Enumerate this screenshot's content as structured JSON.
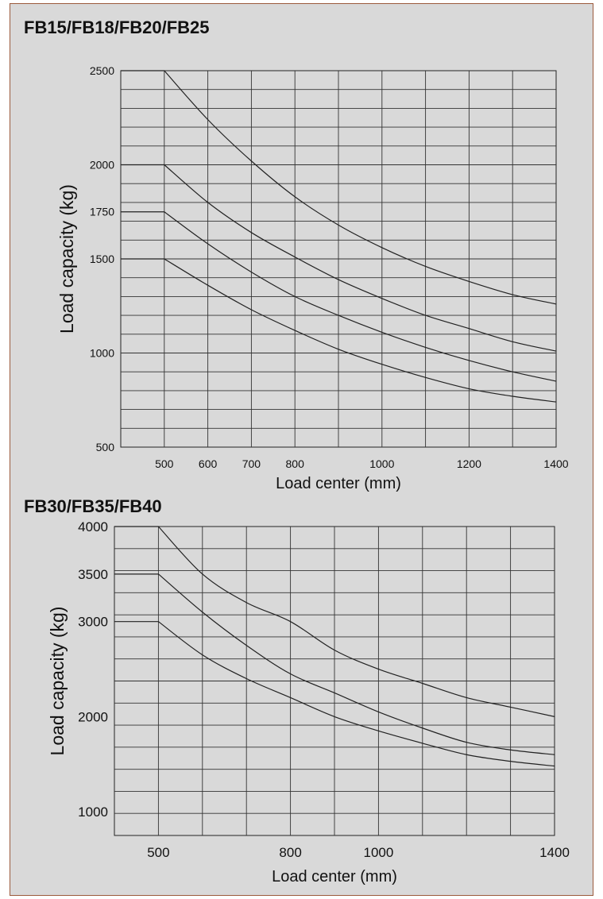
{
  "chart_data": [
    {
      "type": "line",
      "title": "FB15/FB18/FB20/FB25",
      "xlabel": "Load center (mm)",
      "ylabel": "Load capacity (kg)",
      "x_ticks": [
        "500",
        "600",
        "700",
        "800",
        "1000",
        "1200",
        "1400"
      ],
      "y_ticks": [
        "500",
        "1000",
        "1500",
        "1750",
        "2000",
        "2500"
      ],
      "xlim": [
        400,
        1400
      ],
      "ylim": [
        500,
        2500
      ],
      "grid": true,
      "series": [
        {
          "x": [
            400,
            500,
            600,
            700,
            800,
            900,
            1000,
            1100,
            1200,
            1300,
            1400
          ],
          "y": [
            2500,
            2500,
            2240,
            2020,
            1830,
            1680,
            1560,
            1460,
            1380,
            1310,
            1260
          ]
        },
        {
          "x": [
            400,
            500,
            600,
            700,
            800,
            900,
            1000,
            1100,
            1200,
            1300,
            1400
          ],
          "y": [
            2000,
            2000,
            1800,
            1640,
            1510,
            1390,
            1290,
            1200,
            1130,
            1060,
            1010
          ]
        },
        {
          "x": [
            400,
            500,
            600,
            700,
            800,
            900,
            1000,
            1100,
            1200,
            1300,
            1400
          ],
          "y": [
            1750,
            1750,
            1580,
            1430,
            1300,
            1200,
            1110,
            1030,
            960,
            900,
            850
          ]
        },
        {
          "x": [
            400,
            500,
            600,
            700,
            800,
            900,
            1000,
            1100,
            1200,
            1300,
            1400
          ],
          "y": [
            1500,
            1500,
            1360,
            1230,
            1120,
            1020,
            940,
            870,
            810,
            770,
            740
          ]
        }
      ]
    },
    {
      "type": "line",
      "title": "FB30/FB35/FB40",
      "xlabel": "Load center (mm)",
      "ylabel": "Load capacity (kg)",
      "x_ticks": [
        "500",
        "800",
        "1000",
        "1400"
      ],
      "y_ticks": [
        "1000",
        "2000",
        "3000",
        "3500",
        "4000"
      ],
      "xlim": [
        400,
        1400
      ],
      "ylim": [
        750,
        4000
      ],
      "grid": true,
      "series": [
        {
          "x": [
            400,
            500,
            600,
            700,
            800,
            900,
            1000,
            1100,
            1200,
            1300,
            1400
          ],
          "y": [
            4000,
            4000,
            3500,
            3200,
            3000,
            2700,
            2500,
            2350,
            2200,
            2100,
            2000
          ]
        },
        {
          "x": [
            400,
            500,
            600,
            700,
            800,
            900,
            1000,
            1100,
            1200,
            1300,
            1400
          ],
          "y": [
            3500,
            3500,
            3100,
            2750,
            2450,
            2250,
            2050,
            1880,
            1730,
            1650,
            1600
          ]
        },
        {
          "x": [
            400,
            500,
            600,
            700,
            800,
            900,
            1000,
            1100,
            1200,
            1300,
            1400
          ],
          "y": [
            3000,
            3000,
            2650,
            2400,
            2200,
            2000,
            1850,
            1720,
            1600,
            1530,
            1480
          ]
        }
      ]
    }
  ]
}
